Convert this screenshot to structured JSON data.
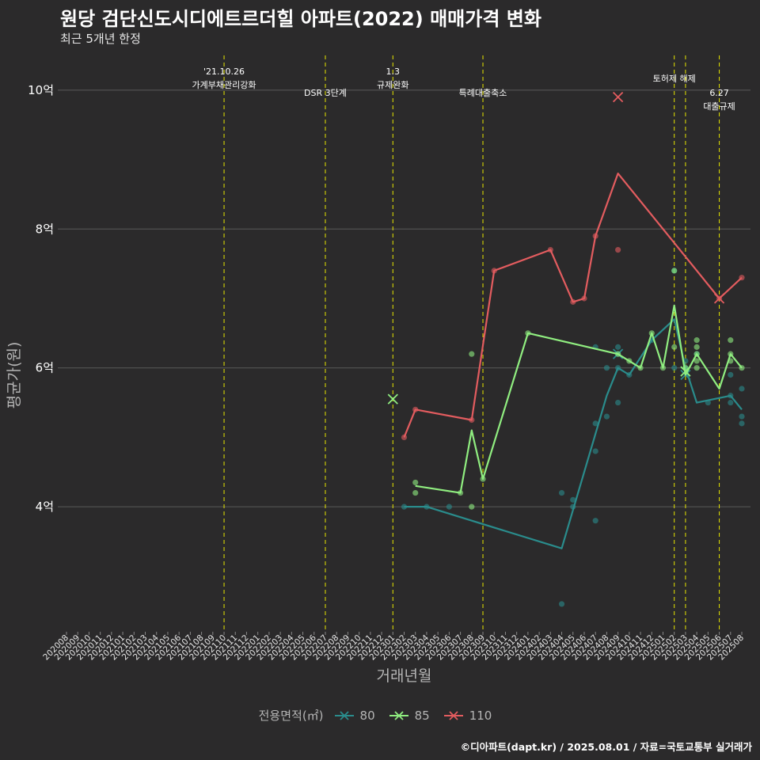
{
  "title": "원당 검단신도시디에트르더힐 아파트(2022) 매매가격 변화",
  "subtitle": "최근 5개년 한정",
  "caption": "©디아파트(dapt.kr) / 2025.08.01 / 자료=국토교통부 실거래가",
  "colors": {
    "background": "#2b2a2b",
    "grid": "#5a5a5a",
    "event_line": "#e6e600",
    "s80": "#2a8c8c",
    "s85": "#90ee80",
    "s110": "#e35c5f"
  },
  "legend": {
    "title": "전용면적(㎡)",
    "items": [
      {
        "label": "80",
        "color": "#2a8c8c",
        "icon": "cross-line-icon"
      },
      {
        "label": "85",
        "color": "#90ee80",
        "icon": "cross-line-icon"
      },
      {
        "label": "110",
        "color": "#e35c5f",
        "icon": "cross-line-icon"
      }
    ]
  },
  "chart_data": {
    "type": "line",
    "title": "원당 검단신도시디에트르더힐 아파트(2022) 매매가격 변화",
    "subtitle": "최근 5개년 한정",
    "xlabel": "거래년월",
    "ylabel": "평균가(원)",
    "x_ticks": [
      "202008",
      "202009",
      "202010",
      "202011",
      "202012",
      "202101",
      "202102",
      "202103",
      "202104",
      "202105",
      "202106",
      "202107",
      "202108",
      "202109",
      "202110",
      "202111",
      "202112",
      "202201",
      "202202",
      "202203",
      "202204",
      "202205",
      "202206",
      "202207",
      "202208",
      "202209",
      "202210",
      "202211",
      "202212",
      "202301",
      "202302",
      "202303",
      "202304",
      "202305",
      "202306",
      "202307",
      "202308",
      "202309",
      "202310",
      "202311",
      "202312",
      "202401",
      "202402",
      "202403",
      "202404",
      "202405",
      "202406",
      "202407",
      "202408",
      "202409",
      "202410",
      "202411",
      "202412",
      "202501",
      "202502",
      "202503",
      "202504",
      "202505",
      "202506",
      "202507",
      "202508"
    ],
    "y_ticks": [
      {
        "value": 4,
        "label": "4억"
      },
      {
        "value": 6,
        "label": "6억"
      },
      {
        "value": 8,
        "label": "8억"
      },
      {
        "value": 10,
        "label": "10억"
      }
    ],
    "ylim": [
      2.2,
      10.5
    ],
    "grid": true,
    "legend_position": "bottom",
    "events": [
      {
        "x": "202110",
        "lines": [
          "'21.10.26",
          "가계부채관리강화"
        ],
        "label_row": 0
      },
      {
        "x": "202207",
        "lines": [
          "DSR 3단계"
        ],
        "label_row": 1
      },
      {
        "x": "202301",
        "lines": [
          "1.3",
          "규제완화"
        ],
        "label_row": 0
      },
      {
        "x": "202309",
        "lines": [
          "특례대출축소"
        ],
        "label_row": 1
      },
      {
        "x": "202502",
        "lines": [
          "토허제 해제"
        ],
        "label_row": 0
      },
      {
        "x": "202503",
        "lines": [],
        "label_row": 0
      },
      {
        "x": "202506",
        "lines": [
          "6.27",
          "대출규제"
        ],
        "label_row": 1
      }
    ],
    "series": [
      {
        "name": "80",
        "color": "#2a8c8c",
        "line": [
          [
            "202302",
            4.0
          ],
          [
            "202304",
            4.0
          ],
          [
            "202404",
            3.4
          ],
          [
            "202408",
            5.6
          ],
          [
            "202409",
            6.0
          ],
          [
            "202410",
            5.9
          ],
          [
            "202412",
            6.4
          ],
          [
            "202502",
            6.7
          ],
          [
            "202503",
            6.0
          ],
          [
            "202504",
            5.5
          ],
          [
            "202507",
            5.6
          ],
          [
            "202508",
            5.4
          ]
        ],
        "points": [
          [
            "202302",
            4.0
          ],
          [
            "202304",
            4.0
          ],
          [
            "202306",
            4.0
          ],
          [
            "202404",
            4.2
          ],
          [
            "202404",
            2.6
          ],
          [
            "202405",
            4.1
          ],
          [
            "202405",
            4.0
          ],
          [
            "202407",
            6.3
          ],
          [
            "202407",
            5.2
          ],
          [
            "202407",
            4.8
          ],
          [
            "202407",
            3.8
          ],
          [
            "202408",
            6.0
          ],
          [
            "202408",
            5.3
          ],
          [
            "202409",
            6.3
          ],
          [
            "202409",
            6.2
          ],
          [
            "202409",
            6.0
          ],
          [
            "202409",
            5.5
          ],
          [
            "202410",
            5.9
          ],
          [
            "202412",
            6.4
          ],
          [
            "202502",
            7.4
          ],
          [
            "202502",
            6.0
          ],
          [
            "202503",
            6.1
          ],
          [
            "202503",
            6.0
          ],
          [
            "202504",
            6.2
          ],
          [
            "202505",
            5.5
          ],
          [
            "202507",
            5.9
          ],
          [
            "202507",
            5.6
          ],
          [
            "202507",
            5.5
          ],
          [
            "202508",
            5.7
          ],
          [
            "202508",
            5.3
          ],
          [
            "202508",
            5.2
          ]
        ],
        "crosses": [
          [
            "202409",
            6.2
          ],
          [
            "202503",
            5.9
          ]
        ]
      },
      {
        "name": "85",
        "color": "#90ee80",
        "line": [
          [
            "202303",
            4.3
          ],
          [
            "202307",
            4.2
          ],
          [
            "202308",
            5.1
          ],
          [
            "202309",
            4.4
          ],
          [
            "202401",
            6.5
          ],
          [
            "202409",
            6.2
          ],
          [
            "202410",
            6.1
          ],
          [
            "202411",
            6.0
          ],
          [
            "202412",
            6.5
          ],
          [
            "202501",
            6.0
          ],
          [
            "202502",
            6.9
          ],
          [
            "202503",
            5.9
          ],
          [
            "202504",
            6.2
          ],
          [
            "202506",
            5.7
          ],
          [
            "202507",
            6.2
          ],
          [
            "202508",
            6.0
          ]
        ],
        "points": [
          [
            "202303",
            4.35
          ],
          [
            "202303",
            4.2
          ],
          [
            "202307",
            4.2
          ],
          [
            "202308",
            6.2
          ],
          [
            "202308",
            4.0
          ],
          [
            "202309",
            4.4
          ],
          [
            "202401",
            6.5
          ],
          [
            "202409",
            6.2
          ],
          [
            "202410",
            6.1
          ],
          [
            "202411",
            6.0
          ],
          [
            "202412",
            6.5
          ],
          [
            "202501",
            6.0
          ],
          [
            "202502",
            7.4
          ],
          [
            "202502",
            6.3
          ],
          [
            "202503",
            6.0
          ],
          [
            "202504",
            6.4
          ],
          [
            "202504",
            6.3
          ],
          [
            "202504",
            6.2
          ],
          [
            "202504",
            6.1
          ],
          [
            "202504",
            6.0
          ],
          [
            "202507",
            6.4
          ],
          [
            "202507",
            6.2
          ],
          [
            "202507",
            6.1
          ],
          [
            "202508",
            6.0
          ]
        ],
        "crosses": [
          [
            "202301",
            5.55
          ],
          [
            "202503",
            5.95
          ]
        ]
      },
      {
        "name": "110",
        "color": "#e35c5f",
        "line": [
          [
            "202302",
            5.0
          ],
          [
            "202303",
            5.4
          ],
          [
            "202308",
            5.25
          ],
          [
            "202310",
            7.4
          ],
          [
            "202403",
            7.7
          ],
          [
            "202405",
            6.95
          ],
          [
            "202406",
            7.0
          ],
          [
            "202407",
            7.9
          ],
          [
            "202409",
            8.8
          ],
          [
            "202506",
            7.0
          ],
          [
            "202508",
            7.3
          ]
        ],
        "points": [
          [
            "202302",
            5.0
          ],
          [
            "202303",
            5.4
          ],
          [
            "202308",
            5.25
          ],
          [
            "202310",
            7.4
          ],
          [
            "202403",
            7.7
          ],
          [
            "202405",
            6.95
          ],
          [
            "202406",
            7.0
          ],
          [
            "202407",
            7.9
          ],
          [
            "202409",
            7.7
          ],
          [
            "202506",
            7.0
          ],
          [
            "202508",
            7.3
          ]
        ],
        "crosses": [
          [
            "202409",
            9.9
          ],
          [
            "202506",
            7.0
          ]
        ]
      }
    ]
  }
}
